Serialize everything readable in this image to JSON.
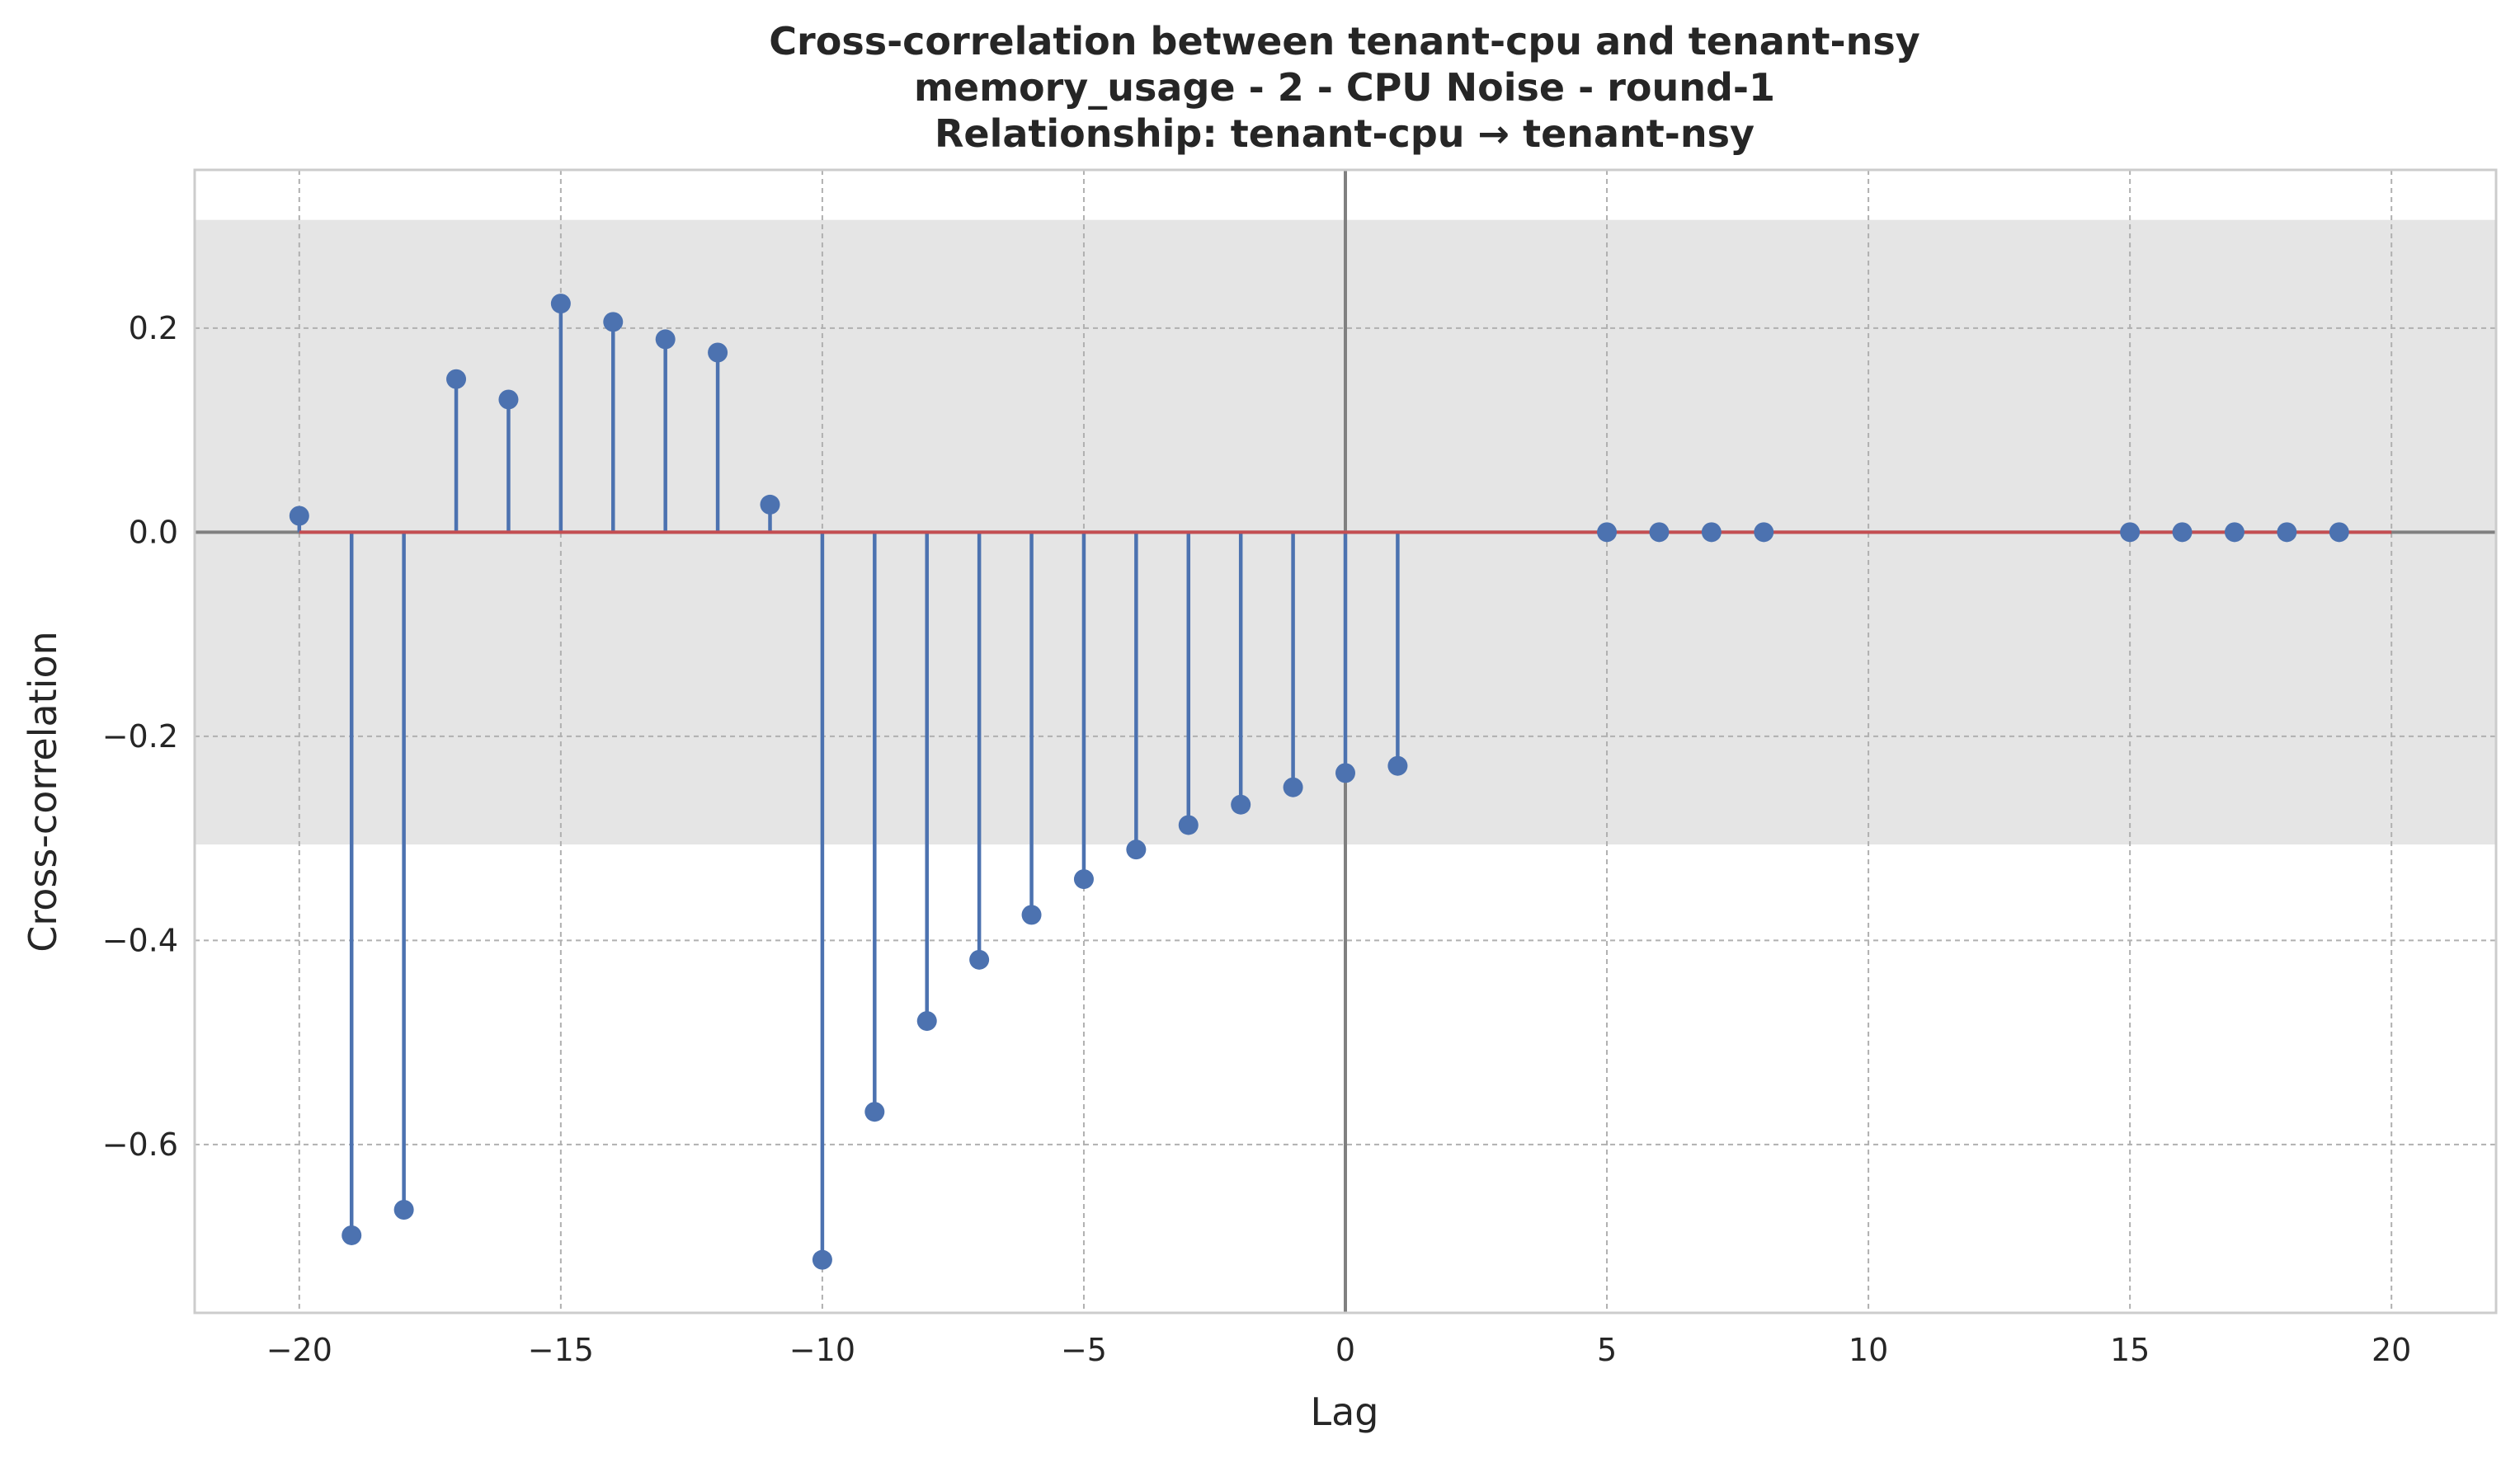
{
  "chart_data": {
    "type": "stem",
    "title_lines": [
      "Cross-correlation between tenant-cpu and tenant-nsy",
      "memory_usage - 2 - CPU Noise - round-1",
      "Relationship: tenant-cpu → tenant-nsy"
    ],
    "xlabel": "Lag",
    "ylabel": "Cross-correlation",
    "xlim": [
      -22,
      22
    ],
    "ylim": [
      -0.765,
      0.355
    ],
    "xticks": [
      -20,
      -15,
      -10,
      -5,
      0,
      5,
      10,
      15,
      20
    ],
    "xtick_labels": [
      "−20",
      "−15",
      "−10",
      "−5",
      "0",
      "5",
      "10",
      "15",
      "20"
    ],
    "yticks": [
      -0.6,
      -0.4,
      -0.2,
      0.0,
      0.2
    ],
    "ytick_labels": [
      "−0.6",
      "−0.4",
      "−0.2",
      "0.0",
      "0.2"
    ],
    "grid": true,
    "confidence_band": [
      -0.306,
      0.306
    ],
    "baseline_range": [
      -20,
      20
    ],
    "points": [
      {
        "lag": -20,
        "value": 0.016
      },
      {
        "lag": -19,
        "value": -0.689
      },
      {
        "lag": -18,
        "value": -0.664
      },
      {
        "lag": -17,
        "value": 0.15
      },
      {
        "lag": -16,
        "value": 0.13
      },
      {
        "lag": -15,
        "value": 0.224
      },
      {
        "lag": -14,
        "value": 0.206
      },
      {
        "lag": -13,
        "value": 0.189
      },
      {
        "lag": -12,
        "value": 0.176
      },
      {
        "lag": -11,
        "value": 0.027
      },
      {
        "lag": -10,
        "value": -0.713
      },
      {
        "lag": -9,
        "value": -0.568
      },
      {
        "lag": -8,
        "value": -0.479
      },
      {
        "lag": -7,
        "value": -0.419
      },
      {
        "lag": -6,
        "value": -0.375
      },
      {
        "lag": -5,
        "value": -0.34
      },
      {
        "lag": -4,
        "value": -0.311
      },
      {
        "lag": -3,
        "value": -0.287
      },
      {
        "lag": -2,
        "value": -0.267
      },
      {
        "lag": -1,
        "value": -0.25
      },
      {
        "lag": 0,
        "value": -0.236
      },
      {
        "lag": 1,
        "value": -0.229
      },
      {
        "lag": 5,
        "value": 0.0
      },
      {
        "lag": 6,
        "value": 0.0
      },
      {
        "lag": 7,
        "value": 0.0
      },
      {
        "lag": 8,
        "value": 0.0
      },
      {
        "lag": 15,
        "value": 0.0
      },
      {
        "lag": 16,
        "value": 0.0
      },
      {
        "lag": 17,
        "value": 0.0
      },
      {
        "lag": 18,
        "value": 0.0
      },
      {
        "lag": 19,
        "value": 0.0
      }
    ],
    "colors": {
      "stem": "#4c72b0",
      "marker": "#4c72b0",
      "baseline": "#c44e52",
      "band": "#e5e5e5",
      "grid": "#b0b0b0",
      "zero_lines": "#808080",
      "frame": "#cccccc"
    }
  }
}
